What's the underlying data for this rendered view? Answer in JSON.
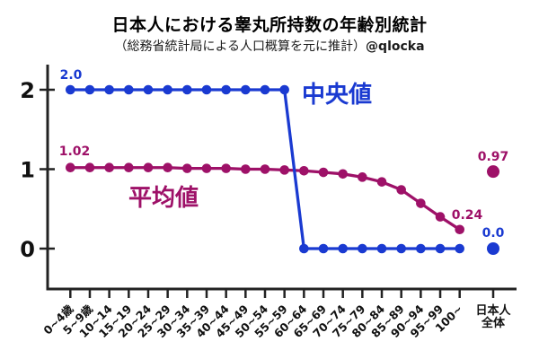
{
  "chart_data": {
    "type": "line",
    "title": "日本人における睾丸所持数の年齢別統計",
    "subtitle": "（総務省統計局による人口概算を元に推計）",
    "credit": "@qlocka",
    "xlabel": "",
    "ylabel": "",
    "ylim": [
      -0.5,
      2.3
    ],
    "grid": false,
    "legend_position": "inline-on-plot",
    "y_ticks": [
      0,
      1,
      2
    ],
    "categories": [
      "0~4歳",
      "5~9歳",
      "10~14",
      "15~19",
      "20~24",
      "25~29",
      "30~34",
      "35~39",
      "40~44",
      "45~49",
      "50~54",
      "55~59",
      "60~64",
      "65~69",
      "70~74",
      "75~79",
      "80~84",
      "85~89",
      "90~94",
      "95~99",
      "100~"
    ],
    "overall_category": "日本人全体",
    "overall_category_lines": [
      "日本人",
      "全体"
    ],
    "series": [
      {
        "key": "median",
        "name": "中央値",
        "color": "#1a3ad1",
        "values": [
          2,
          2,
          2,
          2,
          2,
          2,
          2,
          2,
          2,
          2,
          2,
          2,
          0,
          0,
          0,
          0,
          0,
          0,
          0,
          0,
          0
        ],
        "overall_value": 0.0,
        "first_point_label": "2.0",
        "overall_label": "0.0"
      },
      {
        "key": "mean",
        "name": "平均値",
        "color": "#9e1168",
        "values": [
          1.02,
          1.02,
          1.02,
          1.02,
          1.02,
          1.02,
          1.01,
          1.01,
          1.01,
          1.0,
          1.0,
          0.99,
          0.98,
          0.96,
          0.94,
          0.9,
          0.84,
          0.74,
          0.57,
          0.4,
          0.24
        ],
        "overall_value": 0.97,
        "first_point_label": "1.02",
        "last_point_label": "0.24",
        "overall_label": "0.97"
      }
    ],
    "axis_color": "#222222",
    "text_color": "#111111"
  }
}
